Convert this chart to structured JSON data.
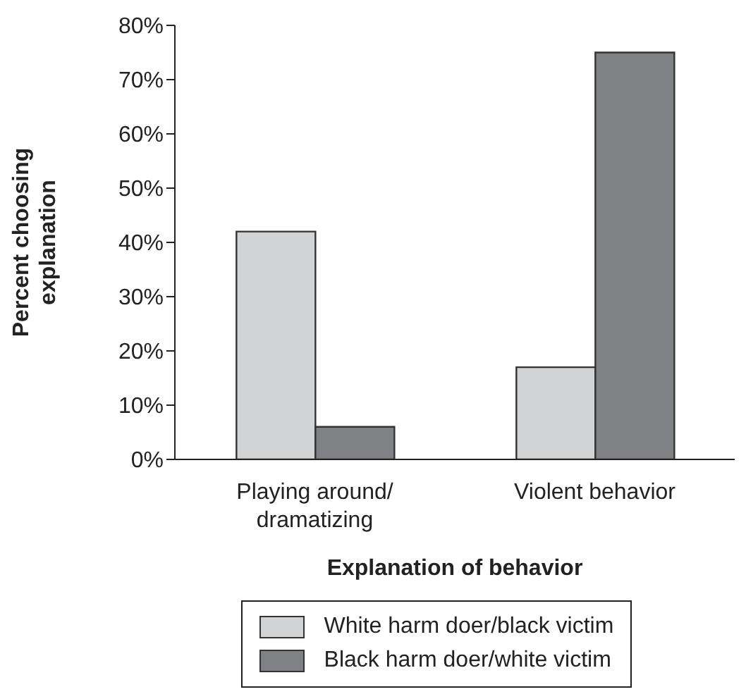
{
  "chart_data": {
    "type": "bar",
    "xlabel": "Explanation of behavior",
    "ylabel": "Percent choosing explanation",
    "categories": [
      "Playing around/ dramatizing",
      "Violent behavior"
    ],
    "series": [
      {
        "name": "White harm doer/black victim",
        "color": "#d2d3d5",
        "values": [
          42,
          17
        ]
      },
      {
        "name": "Black harm doer/white victim",
        "color": "#808184",
        "values": [
          6,
          75
        ]
      }
    ],
    "ylim": [
      0,
      80
    ],
    "yticks": [
      {
        "value": 0,
        "label": "0%"
      },
      {
        "value": 10,
        "label": "10%"
      },
      {
        "value": 20,
        "label": "20%"
      },
      {
        "value": 30,
        "label": "30%"
      },
      {
        "value": 40,
        "label": "40%"
      },
      {
        "value": 50,
        "label": "50%"
      },
      {
        "value": 60,
        "label": "60%"
      },
      {
        "value": 70,
        "label": "70%"
      },
      {
        "value": 80,
        "label": "80%"
      }
    ],
    "grid": false,
    "legend": "bottom"
  }
}
